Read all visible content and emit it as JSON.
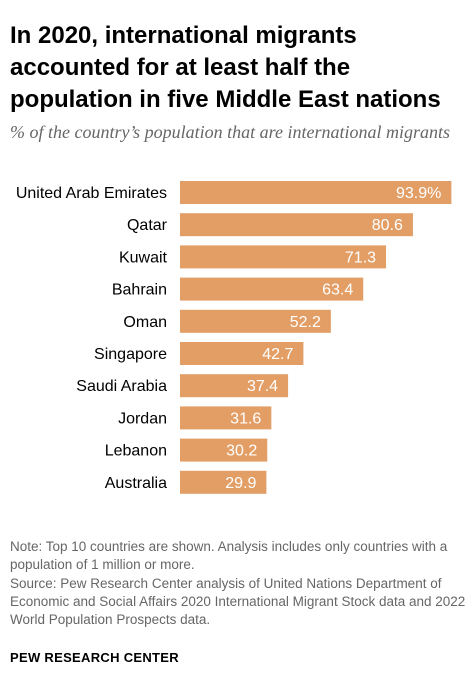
{
  "title": "In 2020, international migrants accounted for at least half the population in five Middle East nations",
  "subtitle": "% of the country’s population that are international migrants",
  "note": "Note: Top 10 countries are shown. Analysis includes only countries with a population of 1 million or more.",
  "source": "Source: Pew Research Center analysis of United Nations Department of Economic and Social Affairs 2020 International Migrant Stock data and 2022 World Population Prospects data.",
  "logo": "PEW RESEARCH CENTER",
  "colors": {
    "bar": "#e39e66",
    "value_text": "#ffffff"
  },
  "chart_data": {
    "type": "bar",
    "orientation": "horizontal",
    "categories": [
      "United Arab Emirates",
      "Qatar",
      "Kuwait",
      "Bahrain",
      "Oman",
      "Singapore",
      "Saudi Arabia",
      "Jordan",
      "Lebanon",
      "Australia"
    ],
    "values": [
      93.9,
      80.6,
      71.3,
      63.4,
      52.2,
      42.7,
      37.4,
      31.6,
      30.2,
      29.9
    ],
    "value_labels": [
      "93.9%",
      "80.6",
      "71.3",
      "63.4",
      "52.2",
      "42.7",
      "37.4",
      "31.6",
      "30.2",
      "29.9"
    ],
    "xlim": [
      0,
      100
    ],
    "grid": false,
    "legend": "none"
  }
}
